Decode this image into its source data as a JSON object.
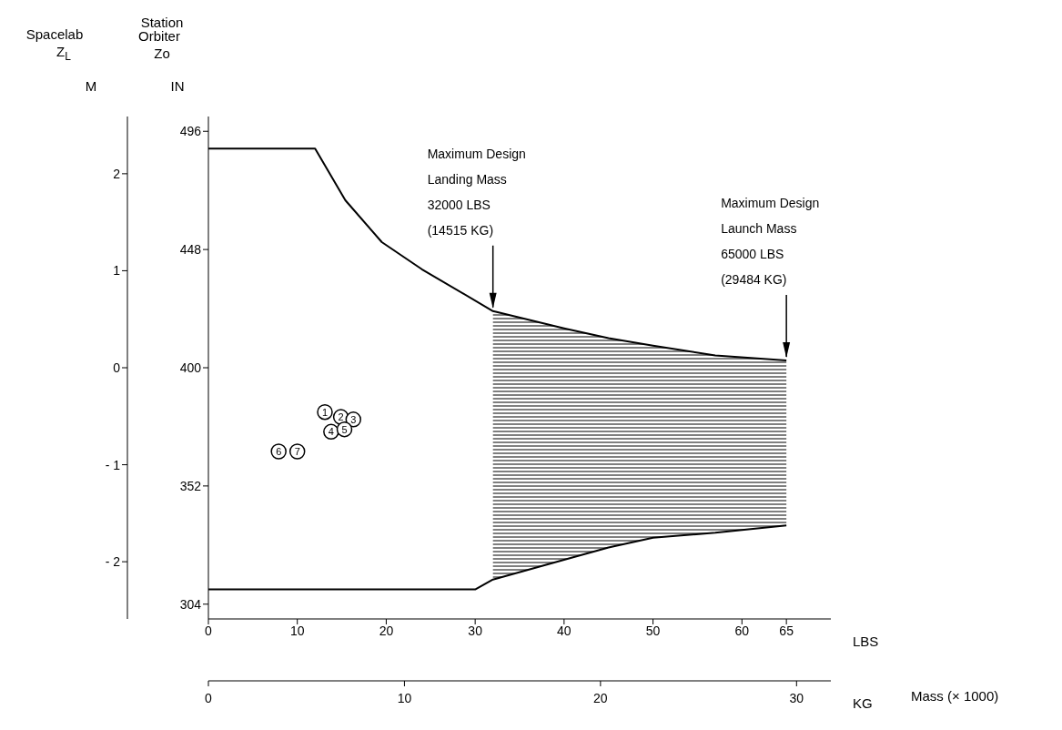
{
  "chart_data": {
    "type": "line",
    "xlabel": "LBS",
    "x2label": "KG",
    "ylabel": "IN",
    "y2label": "M",
    "xlim": [
      0,
      70
    ],
    "xticks": [
      0,
      10,
      20,
      30,
      40,
      50,
      60,
      65
    ],
    "x2lim": [
      0,
      31.75
    ],
    "x2ticks": [
      0,
      10,
      20,
      30
    ],
    "ylim": [
      298,
      502
    ],
    "yticks": [
      304,
      352,
      400,
      448,
      496
    ],
    "y2lim": [
      -2.59,
      2.59
    ],
    "y2ticks": [
      {
        "value": -2,
        "label": "- 2"
      },
      {
        "value": -1,
        "label": "- 1"
      },
      0,
      1,
      2
    ],
    "marker": "none",
    "line_style": "solid",
    "series": [
      {
        "color": "#000000",
        "x": [
          0,
          12,
          15.4,
          19.5,
          24,
          32,
          40,
          45,
          50,
          57,
          65
        ],
        "values": [
          489,
          489,
          468,
          451,
          440,
          423,
          416,
          412,
          409,
          405,
          403
        ]
      },
      {
        "color": "#000000",
        "x": [
          0,
          30,
          32,
          40,
          45,
          50,
          57,
          65
        ],
        "values": [
          310,
          310,
          314,
          322,
          327,
          331,
          333,
          336
        ],
        "lower": [
          null,
          null,
          314,
          322,
          327,
          331,
          333,
          336
        ],
        "upper": [
          null,
          null,
          423,
          416,
          412,
          409,
          405,
          403
        ]
      },
      {
        "type": "scatter",
        "name": "1",
        "color": "#000000",
        "marker": "circle",
        "x": [
          13.1
        ],
        "values": [
          382
        ]
      },
      {
        "type": "scatter",
        "name": "2",
        "color": "#000000",
        "marker": "circle",
        "x": [
          14.9
        ],
        "values": [
          380
        ]
      },
      {
        "type": "scatter",
        "name": "3",
        "color": "#000000",
        "marker": "circle",
        "x": [
          16.3
        ],
        "values": [
          379
        ]
      },
      {
        "type": "scatter",
        "name": "4",
        "color": "#000000",
        "marker": "circle",
        "x": [
          13.8
        ],
        "values": [
          374
        ]
      },
      {
        "type": "scatter",
        "name": "5",
        "color": "#000000",
        "marker": "circle",
        "x": [
          15.3
        ],
        "values": [
          375
        ]
      },
      {
        "type": "scatter",
        "name": "6",
        "color": "#000000",
        "marker": "circle",
        "x": [
          7.9
        ],
        "values": [
          366
        ]
      },
      {
        "type": "scatter",
        "name": "7",
        "color": "#000000",
        "marker": "circle",
        "x": [
          10.0
        ],
        "values": [
          366
        ]
      }
    ],
    "annotations": [
      "Station",
      "Spacelab",
      "Z$_{L}$",
      "Orbiter",
      "Zo",
      {
        "text": "Maximum Design\nLanding Mass\n32000 LBS\n(14515 KG)",
        "x": 32,
        "y": 423
      },
      {
        "text": "Maximum Design\nLaunch Mass\n65000 LBS\n(29484 KG)",
        "x": 65,
        "y": 403
      },
      "Mass (× 1000)"
    ]
  }
}
